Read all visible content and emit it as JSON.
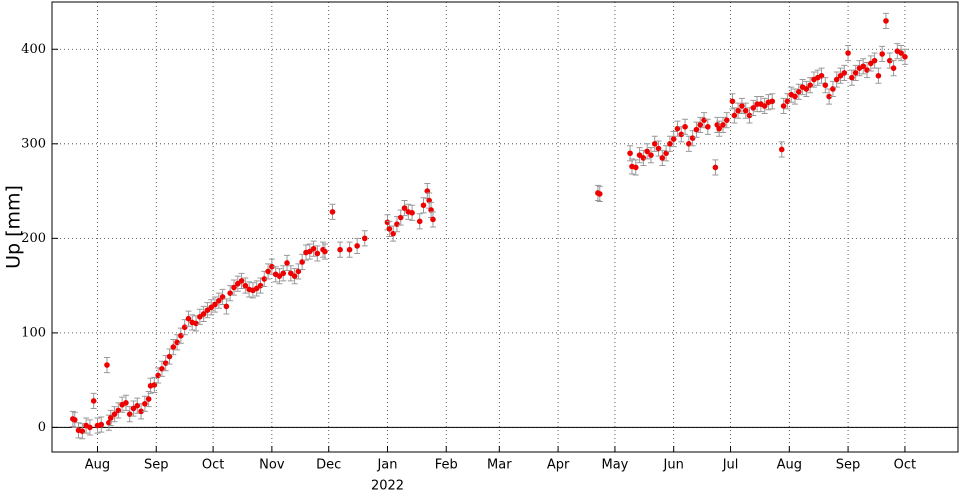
{
  "chart_data": {
    "type": "errorscatter",
    "ylabel": "Up [mm]",
    "year_label": "2022",
    "color": "#ee0000",
    "error_color": "#999999",
    "grid": true,
    "zero_line": true,
    "xlim": [
      -24,
      454
    ],
    "ylim": [
      -26,
      450
    ],
    "xticks": [
      {
        "value": 0,
        "label": "Aug"
      },
      {
        "value": 31,
        "label": "Sep"
      },
      {
        "value": 61,
        "label": "Oct"
      },
      {
        "value": 92,
        "label": "Nov"
      },
      {
        "value": 122,
        "label": "Dec"
      },
      {
        "value": 153,
        "label": "Jan"
      },
      {
        "value": 184,
        "label": "Feb"
      },
      {
        "value": 212,
        "label": "Mar"
      },
      {
        "value": 243,
        "label": "Apr"
      },
      {
        "value": 273,
        "label": "May"
      },
      {
        "value": 304,
        "label": "Jun"
      },
      {
        "value": 334,
        "label": "Jul"
      },
      {
        "value": 365,
        "label": "Aug"
      },
      {
        "value": 396,
        "label": "Sep"
      },
      {
        "value": 426,
        "label": "Oct"
      }
    ],
    "yticks": [
      0,
      100,
      200,
      300,
      400
    ],
    "error": 8,
    "x": [
      -13,
      -12,
      -10,
      -8,
      -6,
      -4,
      -2,
      0,
      2,
      5,
      6,
      7,
      9,
      11,
      13,
      15,
      17,
      19,
      21,
      23,
      25,
      27,
      28,
      30,
      32,
      34,
      36,
      38,
      40,
      42,
      44,
      46,
      48,
      50,
      52,
      54,
      56,
      58,
      60,
      62,
      64,
      66,
      68,
      70,
      72,
      74,
      76,
      78,
      80,
      82,
      84,
      86,
      88,
      90,
      92,
      94,
      96,
      98,
      100,
      102,
      104,
      106,
      108,
      110,
      112,
      114,
      116,
      119,
      120,
      124,
      128,
      133,
      137,
      141,
      153,
      154,
      156,
      158,
      160,
      162,
      164,
      166,
      170,
      172,
      174,
      175,
      176,
      177,
      264,
      265,
      281,
      282,
      284,
      286,
      288,
      290,
      292,
      294,
      296,
      298,
      300,
      302,
      304,
      306,
      308,
      310,
      312,
      314,
      316,
      318,
      320,
      322,
      326,
      327,
      328,
      330,
      332,
      335,
      336,
      338,
      340,
      342,
      344,
      346,
      348,
      350,
      352,
      354,
      356,
      361,
      362,
      364,
      366,
      368,
      370,
      372,
      374,
      376,
      378,
      380,
      382,
      384,
      386,
      388,
      390,
      392,
      394,
      396,
      398,
      400,
      402,
      404,
      406,
      408,
      410,
      412,
      414,
      416,
      418,
      420,
      422,
      424,
      426
    ],
    "values": [
      9,
      8,
      -3,
      -4,
      2,
      0,
      28,
      2,
      3,
      66,
      5,
      10,
      14,
      18,
      24,
      26,
      14,
      20,
      23,
      17,
      25,
      30,
      44,
      45,
      55,
      62,
      68,
      75,
      85,
      90,
      97,
      106,
      115,
      111,
      110,
      117,
      120,
      124,
      127,
      130,
      134,
      138,
      128,
      142,
      148,
      152,
      155,
      150,
      146,
      145,
      147,
      150,
      157,
      165,
      170,
      162,
      160,
      163,
      174,
      163,
      160,
      165,
      175,
      185,
      186,
      189,
      184,
      188,
      186,
      228,
      188,
      188,
      192,
      200,
      217,
      210,
      205,
      215,
      222,
      232,
      228,
      227,
      218,
      235,
      250,
      240,
      230,
      220,
      248,
      247,
      290,
      276,
      275,
      288,
      285,
      292,
      288,
      300,
      295,
      285,
      290,
      300,
      305,
      316,
      310,
      318,
      300,
      306,
      315,
      320,
      325,
      318,
      275,
      320,
      316,
      320,
      325,
      345,
      330,
      335,
      340,
      335,
      330,
      338,
      342,
      342,
      340,
      344,
      345,
      294,
      340,
      345,
      352,
      350,
      355,
      360,
      358,
      362,
      368,
      370,
      372,
      362,
      350,
      358,
      368,
      372,
      375,
      396,
      370,
      375,
      380,
      382,
      378,
      385,
      388,
      372,
      395,
      430,
      388,
      380,
      398,
      396,
      392
    ]
  }
}
